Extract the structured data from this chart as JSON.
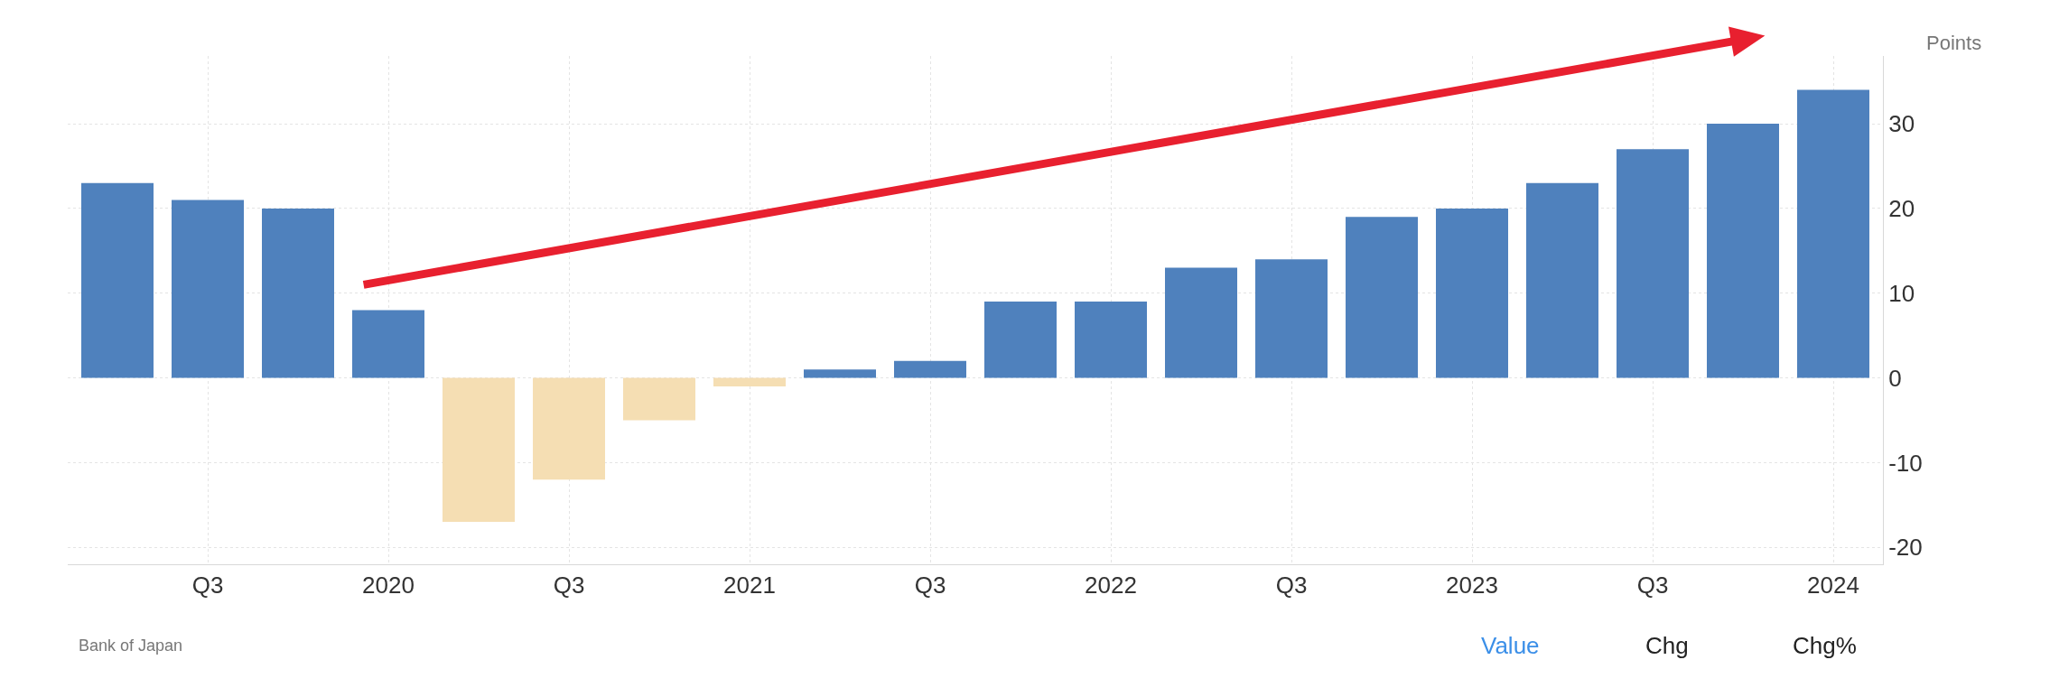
{
  "chart_data": {
    "type": "bar",
    "ylabel": "Points",
    "categories": [
      null,
      "Q3",
      null,
      "2020",
      null,
      "Q3",
      null,
      "2021",
      null,
      "Q3",
      null,
      "2022",
      null,
      "Q3",
      null,
      "2023",
      null,
      "Q3",
      null,
      "2024"
    ],
    "values": [
      23,
      21,
      20,
      8,
      -17,
      -12,
      -5,
      -1,
      1,
      2,
      9,
      9,
      13,
      14,
      19,
      20,
      23,
      27,
      30,
      34
    ],
    "colors": [
      "#4f81bd",
      "#4f81bd",
      "#4f81bd",
      "#4f81bd",
      "#f5deb3",
      "#f5deb3",
      "#f5deb3",
      "#f5deb3",
      "#4f81bd",
      "#4f81bd",
      "#4f81bd",
      "#4f81bd",
      "#4f81bd",
      "#4f81bd",
      "#4f81bd",
      "#4f81bd",
      "#4f81bd",
      "#4f81bd",
      "#4f81bd",
      "#4f81bd"
    ],
    "ylim": [
      -22,
      38
    ],
    "yticks": [
      -20,
      -10,
      0,
      10,
      20,
      30
    ],
    "grid": true,
    "annotations": [
      "Bank of Japan",
      "Value",
      "Chg",
      "Chg%"
    ]
  }
}
